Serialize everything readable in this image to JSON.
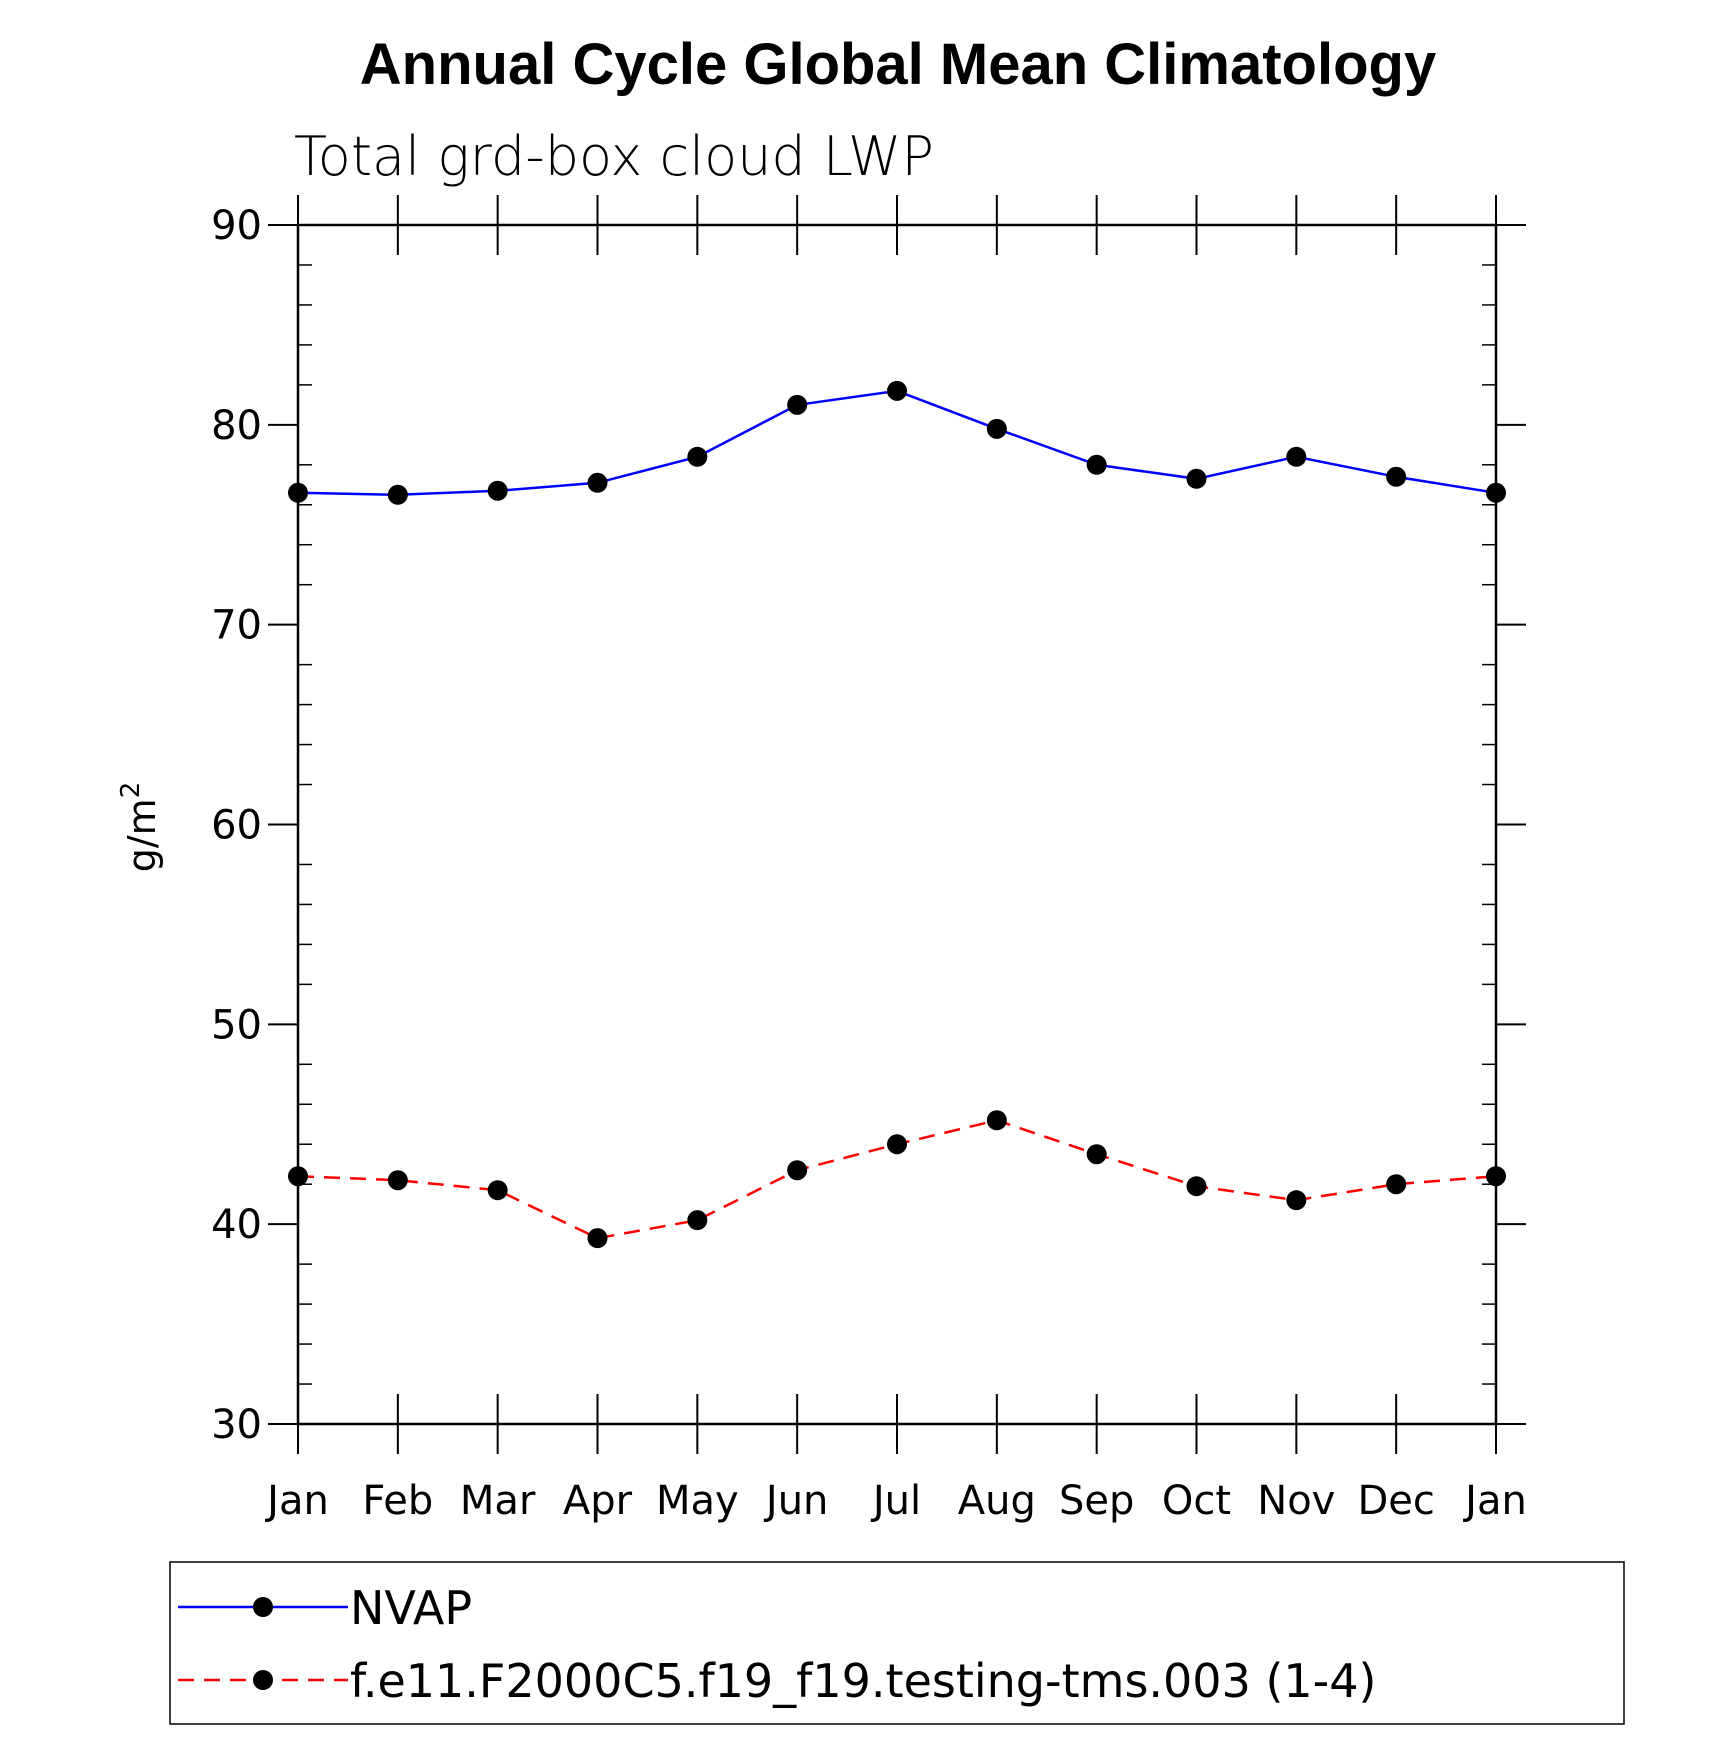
{
  "chart_data": {
    "type": "line",
    "title": "Annual Cycle Global Mean Climatology",
    "subtitle": "Total grd-box cloud LWP",
    "ylabel": "g/m",
    "ylabel_superscript": "2",
    "categories": [
      "Jan",
      "Feb",
      "Mar",
      "Apr",
      "May",
      "Jun",
      "Jul",
      "Aug",
      "Sep",
      "Oct",
      "Nov",
      "Dec",
      "Jan"
    ],
    "ylim": [
      30,
      90
    ],
    "yticks": [
      "30",
      "40",
      "50",
      "60",
      "70",
      "80",
      "90"
    ],
    "grid": false,
    "legend_placement": "bottom",
    "series": [
      {
        "name": "NVAP",
        "color": "#0000ff",
        "style": "solid",
        "marker": "filled-circle",
        "values": [
          76.6,
          76.5,
          76.7,
          77.1,
          78.4,
          81.0,
          81.7,
          79.8,
          78.0,
          77.3,
          78.4,
          77.4,
          76.6
        ]
      },
      {
        "name": "f.e11.F2000C5.f19_f19.testing-tms.003 (1-4)",
        "color": "#ff0000",
        "style": "dashed",
        "marker": "filled-circle",
        "values": [
          42.4,
          42.2,
          41.7,
          39.3,
          40.2,
          42.7,
          44.0,
          45.2,
          43.5,
          41.9,
          41.2,
          42.0,
          42.4
        ]
      }
    ]
  }
}
